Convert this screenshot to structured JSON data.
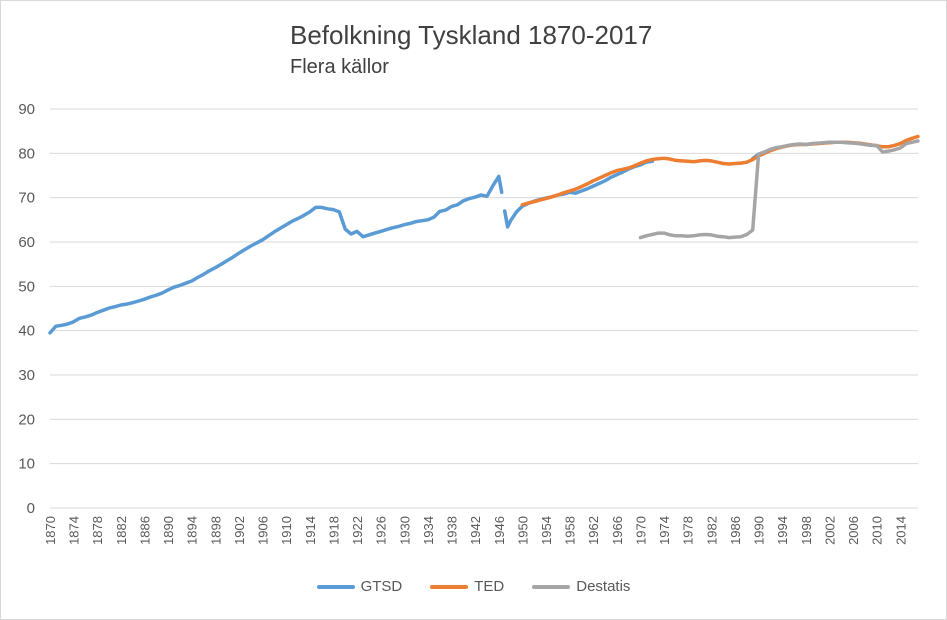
{
  "chart_data": {
    "type": "line",
    "title": "Befolkning Tyskland 1870-2017",
    "subtitle": "Flera källor",
    "xlabel": "",
    "ylabel": "",
    "xlim": [
      1870,
      2017
    ],
    "ylim": [
      0,
      90
    ],
    "yticks": [
      0,
      10,
      20,
      30,
      40,
      50,
      60,
      70,
      80,
      90
    ],
    "xticks": [
      1870,
      1874,
      1878,
      1882,
      1886,
      1890,
      1894,
      1898,
      1902,
      1906,
      1910,
      1914,
      1918,
      1922,
      1926,
      1930,
      1934,
      1938,
      1942,
      1946,
      1950,
      1954,
      1958,
      1962,
      1966,
      1970,
      1974,
      1978,
      1982,
      1986,
      1990,
      1994,
      1998,
      2002,
      2006,
      2010,
      2014
    ],
    "grid": "horizontal",
    "legend_position": "bottom",
    "series": [
      {
        "name": "GTSD",
        "color": "#5b9bd5",
        "segments": [
          [
            [
              1870,
              39.5
            ],
            [
              1871,
              41.0
            ],
            [
              1872,
              41.2
            ],
            [
              1873,
              41.5
            ],
            [
              1874,
              42.0
            ],
            [
              1875,
              42.8
            ],
            [
              1876,
              43.1
            ],
            [
              1877,
              43.5
            ],
            [
              1878,
              44.1
            ],
            [
              1879,
              44.6
            ],
            [
              1880,
              45.1
            ],
            [
              1881,
              45.4
            ],
            [
              1882,
              45.8
            ],
            [
              1883,
              46.0
            ],
            [
              1884,
              46.3
            ],
            [
              1885,
              46.7
            ],
            [
              1886,
              47.1
            ],
            [
              1887,
              47.6
            ],
            [
              1888,
              48.0
            ],
            [
              1889,
              48.5
            ],
            [
              1890,
              49.2
            ],
            [
              1891,
              49.8
            ],
            [
              1892,
              50.2
            ],
            [
              1893,
              50.7
            ],
            [
              1894,
              51.2
            ],
            [
              1895,
              52.0
            ],
            [
              1896,
              52.7
            ],
            [
              1897,
              53.5
            ],
            [
              1898,
              54.2
            ],
            [
              1899,
              55.0
            ],
            [
              1900,
              55.8
            ],
            [
              1901,
              56.6
            ],
            [
              1902,
              57.5
            ],
            [
              1903,
              58.3
            ],
            [
              1904,
              59.1
            ],
            [
              1905,
              59.8
            ],
            [
              1906,
              60.5
            ],
            [
              1907,
              61.4
            ],
            [
              1908,
              62.3
            ],
            [
              1909,
              63.1
            ],
            [
              1910,
              63.9
            ],
            [
              1911,
              64.7
            ],
            [
              1912,
              65.3
            ],
            [
              1913,
              66.0
            ],
            [
              1914,
              66.8
            ],
            [
              1915,
              67.8
            ],
            [
              1916,
              67.8
            ],
            [
              1917,
              67.5
            ],
            [
              1918,
              67.3
            ],
            [
              1919,
              66.8
            ],
            [
              1920,
              62.9
            ],
            [
              1921,
              61.8
            ],
            [
              1922,
              62.4
            ],
            [
              1923,
              61.2
            ],
            [
              1924,
              61.6
            ],
            [
              1925,
              62.0
            ],
            [
              1926,
              62.4
            ],
            [
              1927,
              62.8
            ],
            [
              1928,
              63.2
            ],
            [
              1929,
              63.5
            ],
            [
              1930,
              63.9
            ],
            [
              1931,
              64.2
            ],
            [
              1932,
              64.6
            ],
            [
              1933,
              64.8
            ],
            [
              1934,
              65.0
            ],
            [
              1935,
              65.6
            ],
            [
              1936,
              66.9
            ],
            [
              1937,
              67.2
            ],
            [
              1938,
              68.0
            ],
            [
              1939,
              68.4
            ],
            [
              1940,
              69.3
            ],
            [
              1941,
              69.8
            ],
            [
              1942,
              70.1
            ],
            [
              1943,
              70.6
            ],
            [
              1944,
              70.3
            ],
            [
              1945,
              72.7
            ],
            [
              1946,
              74.8
            ],
            [
              1946.5,
              71.2
            ]
          ],
          [
            [
              1947,
              67.0
            ],
            [
              1947.5,
              63.4
            ],
            [
              1948,
              64.8
            ],
            [
              1949,
              66.8
            ],
            [
              1950,
              68.1
            ],
            [
              1951,
              68.7
            ],
            [
              1952,
              69.2
            ],
            [
              1953,
              69.6
            ],
            [
              1954,
              69.9
            ],
            [
              1955,
              70.2
            ],
            [
              1956,
              70.6
            ],
            [
              1957,
              70.8
            ],
            [
              1958,
              71.2
            ],
            [
              1959,
              71.0
            ],
            [
              1960,
              71.5
            ],
            [
              1961,
              72.0
            ],
            [
              1962,
              72.6
            ],
            [
              1963,
              73.2
            ],
            [
              1964,
              73.8
            ],
            [
              1965,
              74.6
            ],
            [
              1966,
              75.2
            ],
            [
              1967,
              75.8
            ],
            [
              1968,
              76.5
            ],
            [
              1969,
              77.0
            ],
            [
              1970,
              77.4
            ],
            [
              1971,
              78.0
            ],
            [
              1972,
              78.2
            ]
          ],
          [
            [
              1989,
              78.8
            ],
            [
              1990,
              79.8
            ],
            [
              1991,
              80.3
            ]
          ]
        ]
      },
      {
        "name": "TED",
        "color": "#ed7d31",
        "segments": [
          [
            [
              1950,
              68.4
            ],
            [
              1951,
              68.8
            ],
            [
              1952,
              69.1
            ],
            [
              1953,
              69.5
            ],
            [
              1954,
              69.8
            ],
            [
              1955,
              70.2
            ],
            [
              1956,
              70.6
            ],
            [
              1957,
              71.1
            ],
            [
              1958,
              71.5
            ],
            [
              1959,
              71.9
            ],
            [
              1960,
              72.5
            ],
            [
              1961,
              73.1
            ],
            [
              1962,
              73.8
            ],
            [
              1963,
              74.4
            ],
            [
              1964,
              75.0
            ],
            [
              1965,
              75.6
            ],
            [
              1966,
              76.1
            ],
            [
              1967,
              76.4
            ],
            [
              1968,
              76.7
            ],
            [
              1969,
              77.2
            ],
            [
              1970,
              77.8
            ],
            [
              1971,
              78.3
            ],
            [
              1972,
              78.6
            ],
            [
              1973,
              78.8
            ],
            [
              1974,
              78.9
            ],
            [
              1975,
              78.7
            ],
            [
              1976,
              78.4
            ],
            [
              1977,
              78.3
            ],
            [
              1978,
              78.2
            ],
            [
              1979,
              78.1
            ],
            [
              1980,
              78.3
            ],
            [
              1981,
              78.4
            ],
            [
              1982,
              78.3
            ],
            [
              1983,
              78.0
            ],
            [
              1984,
              77.7
            ],
            [
              1985,
              77.6
            ],
            [
              1986,
              77.7
            ],
            [
              1987,
              77.8
            ],
            [
              1988,
              78.0
            ],
            [
              1989,
              78.6
            ],
            [
              1990,
              79.4
            ],
            [
              1991,
              80.0
            ],
            [
              1992,
              80.6
            ],
            [
              1993,
              81.1
            ],
            [
              1994,
              81.4
            ],
            [
              1995,
              81.7
            ],
            [
              1996,
              81.9
            ],
            [
              1997,
              82.0
            ],
            [
              1998,
              82.0
            ],
            [
              1999,
              82.1
            ],
            [
              2000,
              82.2
            ],
            [
              2001,
              82.3
            ],
            [
              2002,
              82.4
            ],
            [
              2003,
              82.5
            ],
            [
              2004,
              82.5
            ],
            [
              2005,
              82.5
            ],
            [
              2006,
              82.4
            ],
            [
              2007,
              82.3
            ],
            [
              2008,
              82.1
            ],
            [
              2009,
              81.9
            ],
            [
              2010,
              81.7
            ],
            [
              2011,
              81.5
            ],
            [
              2012,
              81.5
            ],
            [
              2013,
              81.8
            ],
            [
              2014,
              82.2
            ],
            [
              2015,
              82.9
            ],
            [
              2016,
              83.4
            ],
            [
              2017,
              83.8
            ]
          ]
        ]
      },
      {
        "name": "Destatis",
        "color": "#a5a5a5",
        "segments": [
          [
            [
              1970,
              61.0
            ],
            [
              1971,
              61.4
            ],
            [
              1972,
              61.7
            ],
            [
              1973,
              62.0
            ],
            [
              1974,
              62.0
            ],
            [
              1975,
              61.6
            ],
            [
              1976,
              61.4
            ],
            [
              1977,
              61.4
            ],
            [
              1978,
              61.3
            ],
            [
              1979,
              61.4
            ],
            [
              1980,
              61.6
            ],
            [
              1981,
              61.7
            ],
            [
              1982,
              61.6
            ],
            [
              1983,
              61.3
            ],
            [
              1984,
              61.2
            ],
            [
              1985,
              61.0
            ],
            [
              1986,
              61.1
            ],
            [
              1987,
              61.2
            ],
            [
              1988,
              61.7
            ],
            [
              1989,
              62.7
            ],
            [
              1990,
              79.8
            ],
            [
              1991,
              80.3
            ],
            [
              1992,
              80.9
            ],
            [
              1993,
              81.3
            ],
            [
              1994,
              81.5
            ],
            [
              1995,
              81.8
            ],
            [
              1996,
              82.0
            ],
            [
              1997,
              82.1
            ],
            [
              1998,
              82.0
            ],
            [
              1999,
              82.2
            ],
            [
              2000,
              82.3
            ],
            [
              2001,
              82.4
            ],
            [
              2002,
              82.5
            ],
            [
              2003,
              82.5
            ],
            [
              2004,
              82.5
            ],
            [
              2005,
              82.4
            ],
            [
              2006,
              82.3
            ],
            [
              2007,
              82.2
            ],
            [
              2008,
              82.0
            ],
            [
              2009,
              81.8
            ],
            [
              2010,
              81.8
            ],
            [
              2011,
              80.3
            ],
            [
              2012,
              80.5
            ],
            [
              2013,
              80.8
            ],
            [
              2014,
              81.2
            ],
            [
              2015,
              82.2
            ],
            [
              2016,
              82.5
            ],
            [
              2017,
              82.8
            ]
          ]
        ]
      }
    ]
  }
}
